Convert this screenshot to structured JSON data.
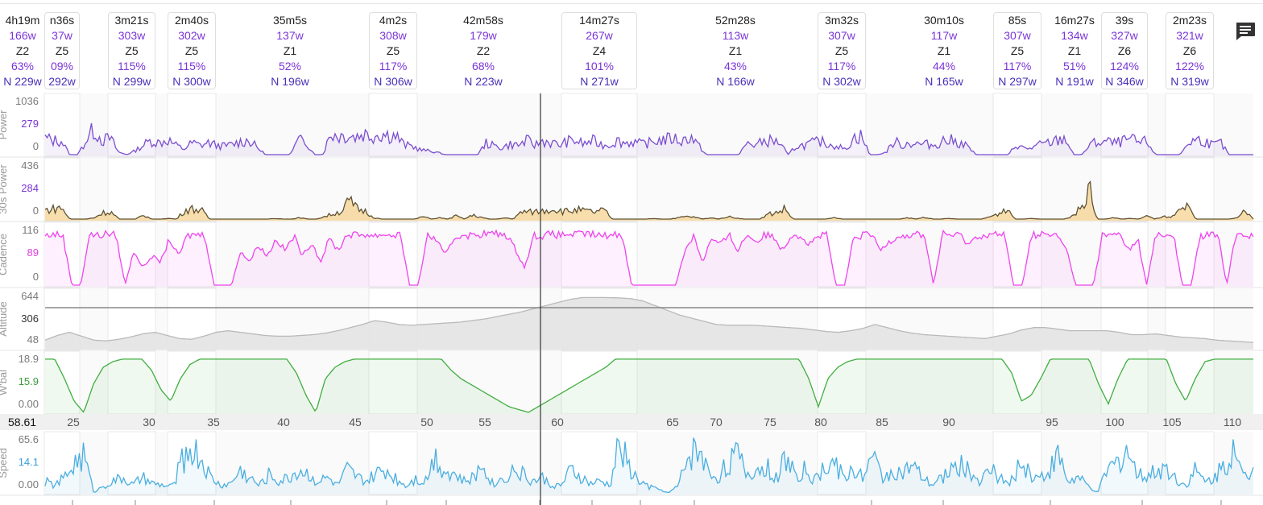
{
  "intervals": [
    {
      "duration": "4h19m",
      "power": "166w",
      "zone": "Z2",
      "percent": "63%",
      "np": "N 229w",
      "start": 0,
      "end": 0
    },
    {
      "duration": "n36s",
      "power": "37w",
      "zone": "Z5",
      "percent": "09%",
      "np": "292w",
      "start": 0,
      "end": 0
    },
    {
      "duration": "3m21s",
      "power": "303w",
      "zone": "Z5",
      "percent": "115%",
      "np": "N 299w",
      "start": 0,
      "end": 0
    },
    {
      "duration": "2m40s",
      "power": "302w",
      "zone": "Z5",
      "percent": "115%",
      "np": "N 300w",
      "start": 0,
      "end": 0
    },
    {
      "duration": "35m5s",
      "power": "137w",
      "zone": "Z1",
      "percent": "52%",
      "np": "N 196w",
      "start": 0,
      "end": 0
    },
    {
      "duration": "4m2s",
      "power": "308w",
      "zone": "Z5",
      "percent": "117%",
      "np": "N 306w",
      "start": 0,
      "end": 0
    },
    {
      "duration": "42m58s",
      "power": "179w",
      "zone": "Z2",
      "percent": "68%",
      "np": "N 223w",
      "start": 0,
      "end": 0
    },
    {
      "duration": "14m27s",
      "power": "267w",
      "zone": "Z4",
      "percent": "101%",
      "np": "N 271w",
      "start": 0,
      "end": 0
    },
    {
      "duration": "52m28s",
      "power": "113w",
      "zone": "Z1",
      "percent": "43%",
      "np": "N 166w",
      "start": 0,
      "end": 0
    },
    {
      "duration": "3m32s",
      "power": "307w",
      "zone": "Z5",
      "percent": "117%",
      "np": "N 302w",
      "start": 0,
      "end": 0
    },
    {
      "duration": "30m10s",
      "power": "117w",
      "zone": "Z1",
      "percent": "44%",
      "np": "N 165w",
      "start": 0,
      "end": 0
    },
    {
      "duration": "85s",
      "power": "307w",
      "zone": "Z5",
      "percent": "117%",
      "np": "N 297w",
      "start": 0,
      "end": 0
    },
    {
      "duration": "16m27s",
      "power": "134w",
      "zone": "Z1",
      "percent": "51%",
      "np": "N 191w",
      "start": 0,
      "end": 0
    },
    {
      "duration": "39s",
      "power": "327w",
      "zone": "Z6",
      "percent": "124%",
      "np": "N 346w",
      "start": 0,
      "end": 0
    },
    {
      "duration": "2m23s",
      "power": "321w",
      "zone": "Z6",
      "percent": "122%",
      "np": "N 319w",
      "start": 0,
      "end": 0
    }
  ],
  "chart_data": {
    "type": "line",
    "x_axis": {
      "cursor_value": "58.61",
      "ticks": [
        "25",
        "30",
        "35",
        "40",
        "45",
        "50",
        "55",
        "60",
        "65",
        "70",
        "75",
        "80",
        "85",
        "90",
        "95",
        "100",
        "105",
        "110"
      ]
    },
    "panels": [
      {
        "label": "Power",
        "ticks": [
          "1036",
          "279",
          "0"
        ],
        "ylim": [
          0,
          1036
        ],
        "color": "#7b4fd0",
        "base": [
          35,
          30,
          30,
          0,
          0,
          30,
          55,
          30,
          35,
          5,
          0,
          8,
          20,
          30,
          25,
          32,
          20,
          12,
          25,
          20,
          25,
          20,
          18,
          22,
          28,
          30,
          15,
          0,
          0,
          0,
          0,
          30,
          28,
          0,
          0,
          45,
          40,
          42,
          38,
          45,
          40,
          45,
          42,
          40,
          20,
          18,
          10,
          8,
          5,
          0,
          0,
          0,
          0,
          0,
          25,
          18,
          15,
          22,
          20,
          30,
          20,
          30,
          25,
          20,
          28,
          30,
          22,
          30,
          22,
          20,
          30,
          25,
          28,
          22,
          25,
          30,
          32,
          35,
          28,
          40,
          20,
          0,
          0,
          0,
          0,
          0,
          25,
          20,
          28,
          30,
          25,
          0,
          18,
          20,
          25,
          28,
          22,
          20,
          10,
          35,
          40,
          0,
          0,
          5,
          28,
          20,
          25,
          22,
          22,
          20,
          30,
          30,
          25,
          18,
          0,
          0,
          0,
          0,
          0,
          22,
          12,
          15,
          22,
          25,
          30,
          35,
          0,
          0,
          22,
          26,
          28,
          24,
          28,
          32,
          25,
          28,
          0,
          0,
          0,
          0,
          25,
          32,
          30,
          20,
          25,
          0,
          0,
          0,
          0
        ]
      },
      {
        "label": "30s Power",
        "ticks": [
          "436",
          "284",
          "0"
        ],
        "ylim": [
          0,
          436
        ],
        "color": "#128a3c",
        "base": [
          70,
          80,
          90,
          0,
          0,
          0,
          10,
          50,
          55,
          0,
          0,
          0,
          30,
          0,
          0,
          5,
          0,
          70,
          80,
          70,
          0,
          0,
          0,
          0,
          0,
          0,
          0,
          0,
          5,
          0,
          0,
          10,
          0,
          0,
          20,
          40,
          60,
          140,
          80,
          60,
          10,
          0,
          0,
          0,
          0,
          0,
          20,
          0,
          10,
          0,
          25,
          0,
          30,
          15,
          0,
          0,
          10,
          0,
          60,
          55,
          60,
          70,
          80,
          60,
          65,
          70,
          60,
          55,
          70,
          0,
          0,
          0,
          0,
          0,
          5,
          0,
          0,
          10,
          20,
          15,
          0,
          10,
          0,
          20,
          10,
          0,
          0,
          0,
          40,
          50,
          80,
          0,
          0,
          0,
          0,
          0,
          10,
          0,
          0,
          0,
          0,
          0,
          0,
          0,
          0,
          10,
          0,
          15,
          0,
          0,
          5,
          0,
          0,
          0,
          0,
          20,
          40,
          90,
          0,
          0,
          5,
          0,
          0,
          0,
          0,
          30,
          80,
          240,
          0,
          0,
          10,
          0,
          5,
          0,
          25,
          0,
          20,
          10,
          60,
          90,
          0,
          0,
          0,
          0,
          0,
          10,
          60,
          0
        ]
      },
      {
        "label": "Cadence",
        "ticks": [
          "116",
          "89",
          "0"
        ],
        "ylim": [
          0,
          116
        ],
        "color": "#ee44ee",
        "base": [
          85,
          88,
          86,
          0,
          0,
          88,
          85,
          89,
          86,
          0,
          60,
          30,
          50,
          40,
          80,
          50,
          85,
          88,
          86,
          0,
          0,
          0,
          60,
          40,
          70,
          50,
          80,
          60,
          85,
          50,
          75,
          40,
          80,
          60,
          88,
          86,
          88,
          85,
          88,
          86,
          88,
          0,
          0,
          85,
          80,
          50,
          80,
          88,
          85,
          88,
          89,
          88,
          86,
          60,
          30,
          86,
          85,
          88,
          86,
          88,
          87,
          89,
          86,
          85,
          88,
          86,
          0,
          0,
          0,
          0,
          0,
          0,
          60,
          86,
          40,
          80,
          70,
          86,
          60,
          88,
          75,
          86,
          85,
          60,
          88,
          86,
          70,
          85,
          86,
          0,
          0,
          80,
          86,
          88,
          60,
          75,
          86,
          85,
          88,
          86,
          0,
          88,
          86,
          86,
          70,
          86,
          85,
          88,
          86,
          0,
          0,
          86,
          88,
          86,
          85,
          60,
          0,
          0,
          0,
          86,
          85,
          88,
          60,
          80,
          0,
          86,
          85,
          88,
          0,
          0,
          85,
          86,
          88,
          0,
          86,
          88,
          85
        ]
      },
      {
        "label": "Altitude",
        "ticks": [
          "644",
          "306",
          "48"
        ],
        "ylim": [
          0,
          644
        ],
        "color": "#b9b9b9",
        "base": [
          100,
          160,
          200,
          150,
          100,
          90,
          110,
          140,
          180,
          200,
          160,
          120,
          110,
          150,
          200,
          220,
          200,
          180,
          160,
          150,
          150,
          160,
          170,
          190,
          220,
          260,
          300,
          350,
          330,
          300,
          290,
          300,
          310,
          320,
          330,
          350,
          370,
          400,
          430,
          460,
          500,
          540,
          580,
          620,
          644,
          644,
          644,
          640,
          630,
          600,
          540,
          480,
          420,
          380,
          340,
          300,
          290,
          290,
          290,
          280,
          270,
          260,
          250,
          230,
          210,
          200,
          220,
          250,
          300,
          260,
          220,
          190,
          170,
          160,
          150,
          140,
          130,
          120,
          150,
          180,
          230,
          260,
          260,
          240,
          220,
          220,
          220,
          220,
          200,
          170,
          170,
          180,
          160,
          140,
          130,
          120,
          100,
          90,
          80,
          70
        ]
      },
      {
        "label": "W'bal",
        "ticks": [
          "18.9",
          "15.9",
          "0.00"
        ],
        "ylim": [
          0,
          18.9
        ],
        "color": "#3fae3f",
        "base": [
          18.9,
          18.9,
          12,
          4,
          0,
          10,
          16,
          18,
          18.9,
          18.9,
          18.9,
          15,
          8,
          4,
          12,
          17,
          18.9,
          18.9,
          18.9,
          18.9,
          18.9,
          18.9,
          18.9,
          18.9,
          18.9,
          18.9,
          14,
          6,
          0,
          12,
          16,
          18,
          18.9,
          18.9,
          18.9,
          18.9,
          18.9,
          18.9,
          18.9,
          18.9,
          18.9,
          18.9,
          15,
          12,
          10,
          8,
          6,
          4,
          2,
          1,
          0,
          2,
          4,
          6,
          8,
          10,
          12,
          14,
          16,
          18.9,
          18.9,
          18.9,
          18.9,
          18.9,
          18.9,
          18.9,
          18.9,
          18.9,
          18.9,
          18.9,
          18.9,
          18.9,
          18.9,
          18.9,
          18.9,
          18.9,
          18.9,
          18.9,
          18.9,
          12,
          2,
          12,
          16,
          18,
          18.9,
          18.9,
          18.9,
          18.9,
          18.9,
          18.9,
          18.9,
          18.9,
          18.9,
          18.9,
          18.9,
          18.9,
          18.9,
          18.9,
          18.9,
          18.9,
          14,
          4,
          6,
          12,
          18.9,
          18.9,
          18.9,
          18.9,
          18.9,
          10,
          3,
          12,
          18.9,
          18.9,
          18.9,
          18.9,
          18.9,
          10,
          4,
          12,
          18,
          18.9,
          18.9,
          18.9,
          18.9,
          18.9
        ]
      },
      {
        "label": "Speed",
        "ticks": [
          "65.6",
          "14.1",
          "0.00"
        ],
        "ylim": [
          0,
          65.6
        ],
        "color": "#4aaee0",
        "base": [
          15,
          10,
          20,
          40,
          50,
          0,
          10,
          15,
          20,
          10,
          20,
          12,
          10,
          8,
          40,
          60,
          45,
          20,
          10,
          12,
          30,
          20,
          10,
          25,
          15,
          20,
          30,
          25,
          15,
          20,
          10,
          30,
          20,
          15,
          25,
          30,
          20,
          10,
          20,
          15,
          50,
          30,
          25,
          15,
          20,
          40,
          10,
          20,
          30,
          25,
          15,
          20,
          10,
          10,
          30,
          20,
          12,
          15,
          10,
          70,
          30,
          15,
          8,
          5,
          0,
          10,
          50,
          60,
          30,
          20,
          40,
          50,
          25,
          30,
          35,
          20,
          45,
          25,
          30,
          15,
          35,
          40,
          20,
          30,
          25,
          45,
          20,
          30,
          25,
          35,
          20,
          10,
          20,
          30,
          40,
          25,
          15,
          30,
          20,
          10,
          40,
          25,
          20,
          30,
          50,
          15,
          20,
          10,
          0,
          30,
          40,
          60,
          25,
          20,
          30,
          35,
          20,
          10,
          30,
          15,
          20,
          40,
          50,
          20,
          30
        ]
      }
    ]
  }
}
